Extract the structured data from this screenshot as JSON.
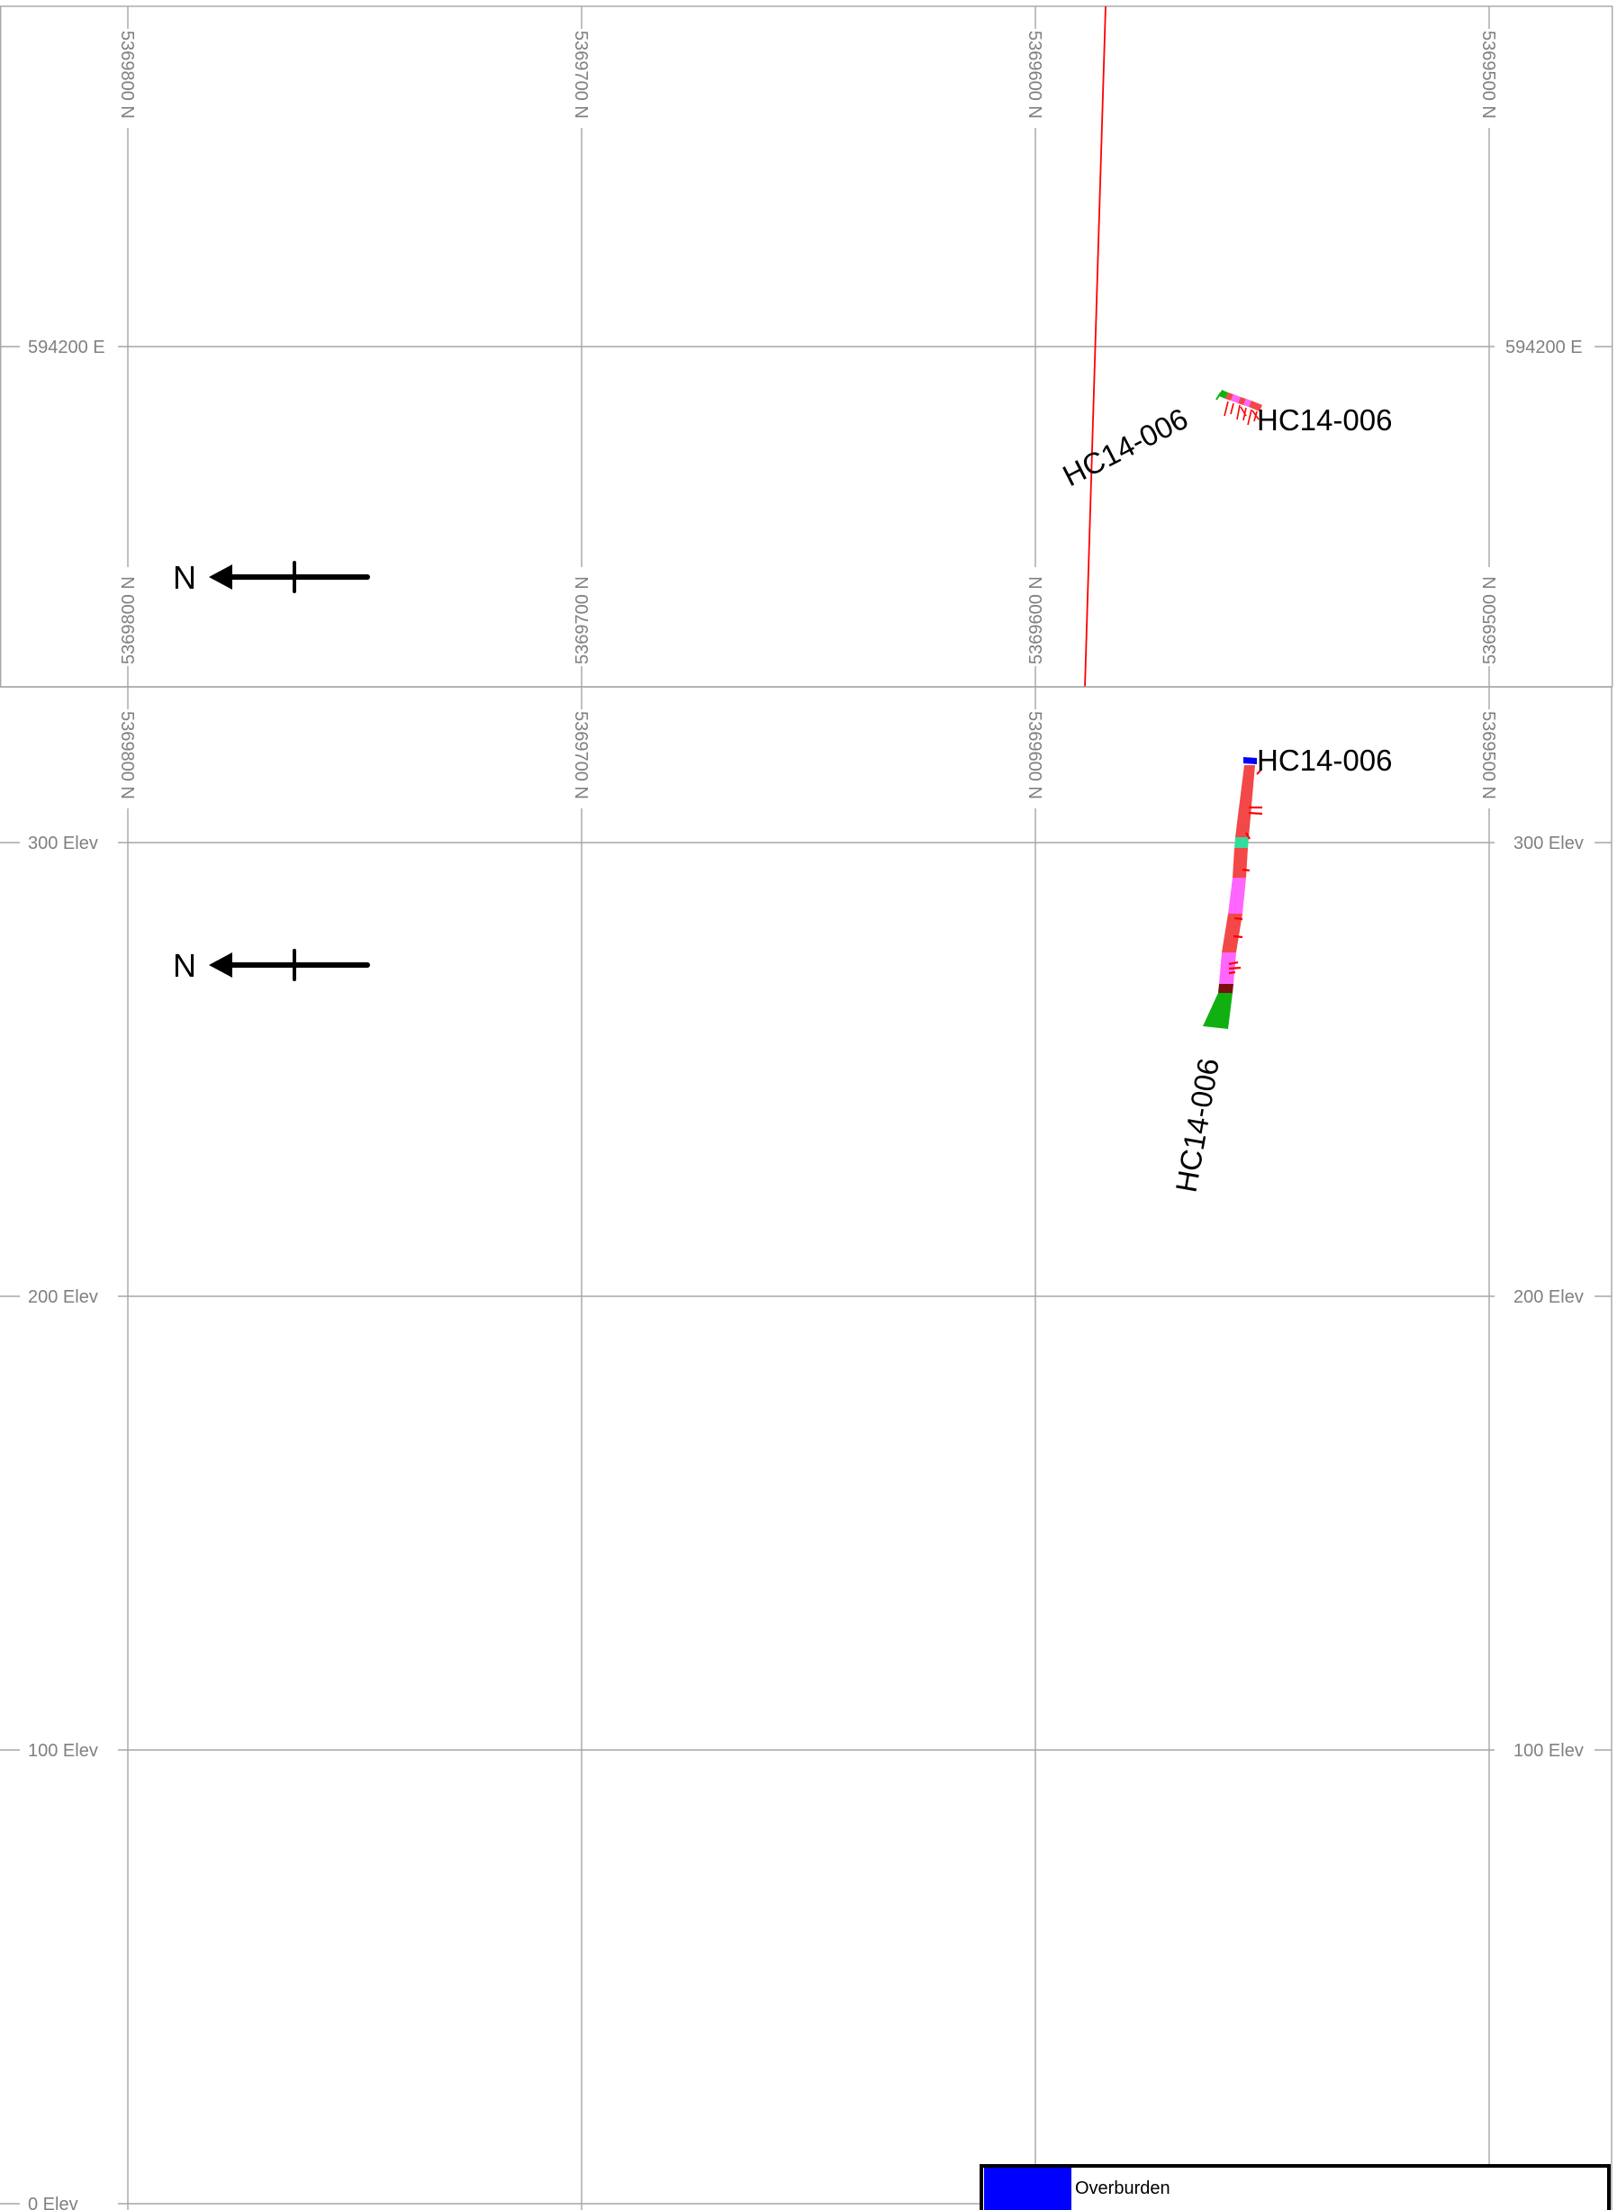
{
  "plan_view": {
    "northing_labels": [
      "5369800 N",
      "5369700 N",
      "5369600 N",
      "5369500 N"
    ],
    "easting_label": "594200 E",
    "north_arrow_label": "N",
    "hole_label_trace": "HC14-006",
    "hole_label_collar": "HC14-006"
  },
  "section_view": {
    "northing_labels": [
      "5369800 N",
      "5369700 N",
      "5369600 N",
      "5369500 N"
    ],
    "elevation_labels": [
      "300 Elev",
      "200 Elev",
      "100 Elev",
      "0 Elev"
    ],
    "north_arrow_label": "N",
    "hole_label_collar": "HC14-006",
    "hole_label_trace": "HC14-006"
  },
  "legend": {
    "items": [
      {
        "label": "Overburden",
        "color": "#0000ff"
      }
    ]
  },
  "colors": {
    "grid": "#a6a6a6",
    "section_line": "#ff0000",
    "lith_red": "#f24848",
    "lith_magenta": "#ff66ff",
    "lith_green": "#10b010",
    "lith_teal": "#33dd99",
    "lith_dark": "#7a1010",
    "overburden": "#0000ff"
  }
}
